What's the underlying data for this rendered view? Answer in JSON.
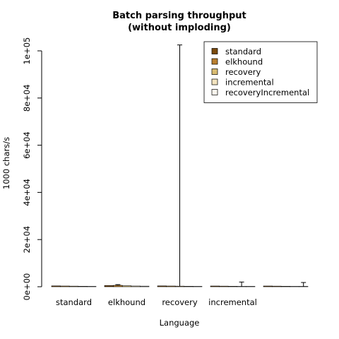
{
  "chart_data": {
    "type": "bar",
    "title_lines": [
      "Batch parsing throughput",
      "(without imploding)"
    ],
    "xlabel": "Language",
    "ylabel": "1000 chars/s",
    "ylim": [
      0,
      100000
    ],
    "yticks": [
      0,
      20000,
      40000,
      60000,
      80000,
      100000
    ],
    "ytick_labels": [
      "0e+00",
      "2e+04",
      "4e+04",
      "6e+04",
      "8e+04",
      "1e+05"
    ],
    "categories": [
      "standard",
      "elkhound",
      "recovery",
      "incremental",
      ""
    ],
    "series": [
      {
        "name": "standard",
        "color": "#7a4a0d",
        "values": [
          350,
          500,
          350,
          300,
          300
        ],
        "err_high": [
          null,
          null,
          null,
          null,
          null
        ]
      },
      {
        "name": "elkhound",
        "color": "#b97f2f",
        "values": [
          300,
          600,
          300,
          250,
          250
        ],
        "err_high": [
          null,
          900,
          null,
          null,
          null
        ]
      },
      {
        "name": "recovery",
        "color": "#d9bc72",
        "values": [
          250,
          400,
          250,
          200,
          200
        ],
        "err_high": [
          null,
          null,
          102500,
          null,
          null
        ]
      },
      {
        "name": "incremental",
        "color": "#f2e3bf",
        "values": [
          200,
          300,
          200,
          150,
          150
        ],
        "err_high": [
          null,
          null,
          null,
          2000,
          null
        ]
      },
      {
        "name": "recoveryIncremental",
        "color": "#fbf7ee",
        "values": [
          150,
          250,
          150,
          100,
          100
        ],
        "err_high": [
          null,
          null,
          null,
          null,
          1800
        ]
      }
    ],
    "legend_position": "top-right",
    "grid": false
  }
}
